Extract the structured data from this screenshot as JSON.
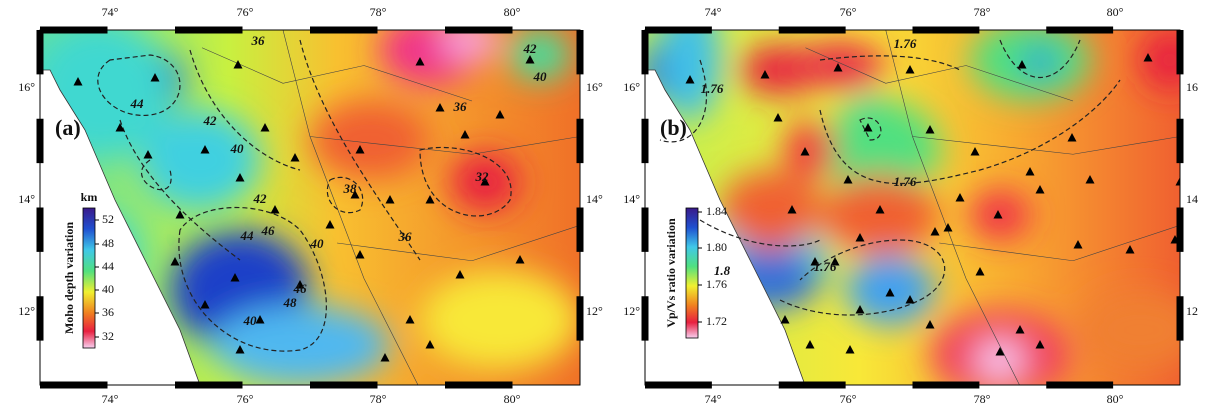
{
  "panels": [
    {
      "label": "(a)",
      "top_ticks": [
        "74°",
        "76°",
        "78°",
        "80°"
      ],
      "bottom_ticks": [
        "74°",
        "76°",
        "78°",
        "80°"
      ],
      "left_ticks": [
        "16°",
        "14°",
        "12°"
      ],
      "right_ticks": [
        "16°",
        "14°",
        "12°"
      ],
      "colorbar": {
        "title": "Moho depth variation",
        "unit": "km",
        "ticks": [
          "52",
          "48",
          "44",
          "40",
          "36",
          "32"
        ]
      },
      "contour_labels": [
        "36",
        "42",
        "40",
        "44",
        "42",
        "40",
        "36",
        "38",
        "32",
        "42",
        "44",
        "46",
        "40",
        "46",
        "48",
        "40",
        "36"
      ]
    },
    {
      "label": "(b)",
      "top_ticks": [
        "74°",
        "76°",
        "78°",
        "80°"
      ],
      "bottom_ticks": [
        "74°",
        "76°",
        "78°",
        "80°"
      ],
      "left_ticks": [
        "16°",
        "14°",
        "12°"
      ],
      "right_ticks": [
        "16",
        "14",
        "12"
      ],
      "colorbar": {
        "title": "Vp/Vs ratio variation",
        "ticks": [
          "1.84",
          "1.80",
          "1.76",
          "1.72"
        ]
      },
      "contour_labels": [
        "1.76",
        "1.76",
        "1.76",
        "1.76",
        "1.8"
      ]
    }
  ]
}
